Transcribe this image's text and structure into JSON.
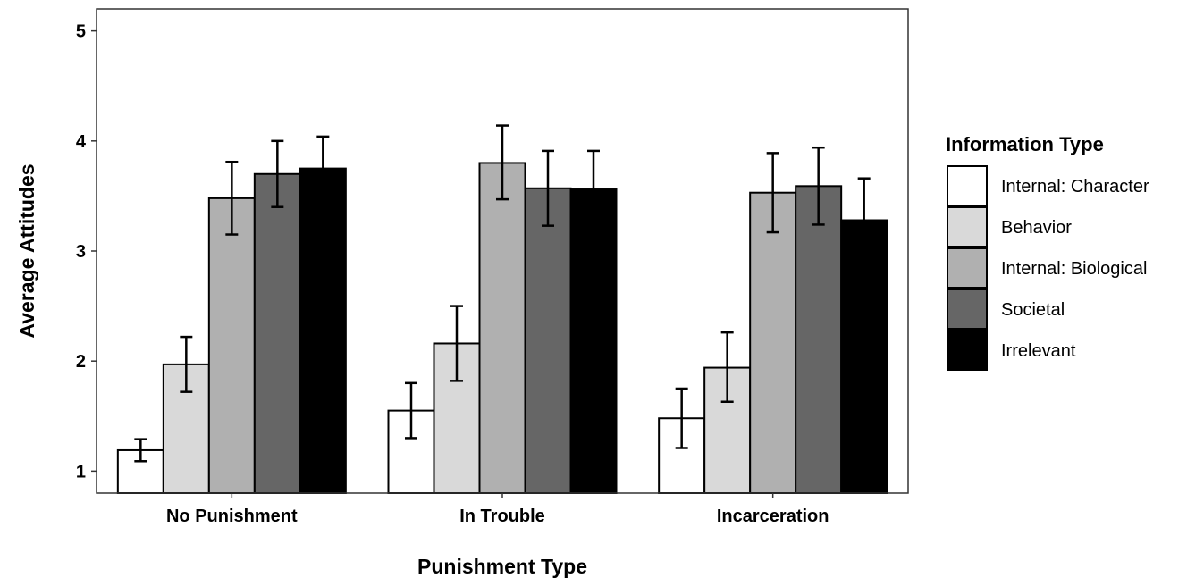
{
  "chart_data": {
    "type": "bar",
    "title": "",
    "xlabel": "Punishment Type",
    "ylabel": "Average Attitudes",
    "ylim": [
      0.8,
      5.2
    ],
    "yticks": [
      1,
      2,
      3,
      4,
      5
    ],
    "categories": [
      "No Punishment",
      "In Trouble",
      "Incarceration"
    ],
    "legend": {
      "title": "Information Type",
      "position": "right"
    },
    "grid": false,
    "series": [
      {
        "name": "Internal: Character",
        "color": "#ffffff",
        "values": [
          1.19,
          1.55,
          1.48
        ],
        "err_low": [
          1.09,
          1.3,
          1.21
        ],
        "err_high": [
          1.29,
          1.8,
          1.75
        ]
      },
      {
        "name": "Behavior",
        "color": "#d9d9d9",
        "values": [
          1.97,
          2.16,
          1.94
        ],
        "err_low": [
          1.72,
          1.82,
          1.63
        ],
        "err_high": [
          2.22,
          2.5,
          2.26
        ]
      },
      {
        "name": "Internal: Biological",
        "color": "#b0b0b0",
        "values": [
          3.48,
          3.8,
          3.53
        ],
        "err_low": [
          3.15,
          3.47,
          3.17
        ],
        "err_high": [
          3.81,
          4.14,
          3.89
        ]
      },
      {
        "name": "Societal",
        "color": "#666666",
        "values": [
          3.7,
          3.57,
          3.59
        ],
        "err_low": [
          3.4,
          3.23,
          3.24
        ],
        "err_high": [
          4.0,
          3.91,
          3.94
        ]
      },
      {
        "name": "Irrelevant",
        "color": "#000000",
        "values": [
          3.75,
          3.56,
          3.28
        ],
        "err_low": [
          3.46,
          3.21,
          2.9
        ],
        "err_high": [
          4.04,
          3.91,
          3.66
        ]
      }
    ]
  }
}
